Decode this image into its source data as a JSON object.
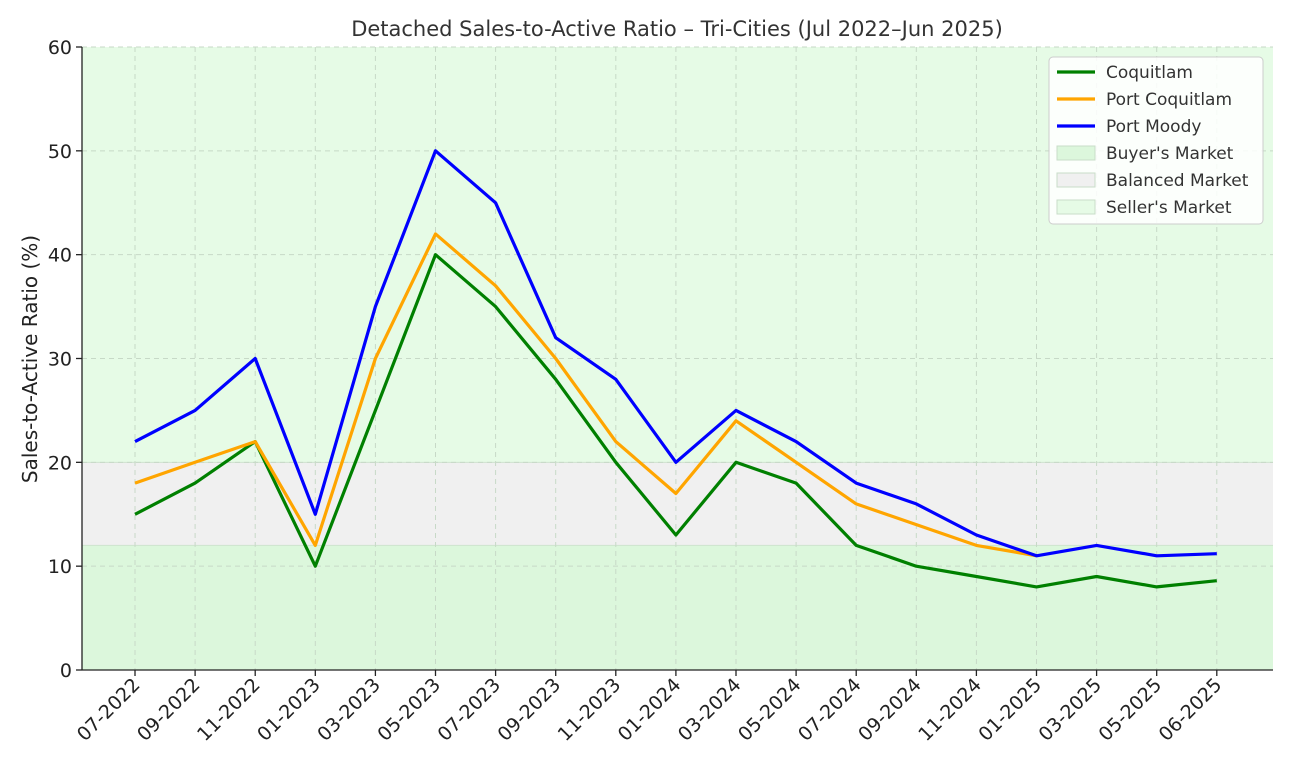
{
  "chart_data": {
    "type": "line",
    "title": "Detached Sales-to-Active Ratio – Tri-Cities (Jul 2022–Jun 2025)",
    "xlabel": "",
    "ylabel": "Sales-to-Active Ratio (%)",
    "ylim": [
      0,
      60
    ],
    "yticks": [
      0,
      10,
      20,
      30,
      40,
      50,
      60
    ],
    "grid": true,
    "legend_position": "top-right",
    "x": [
      "07-2022",
      "09-2022",
      "11-2022",
      "01-2023",
      "03-2023",
      "05-2023",
      "07-2023",
      "09-2023",
      "11-2023",
      "01-2024",
      "03-2024",
      "05-2024",
      "07-2024",
      "09-2024",
      "11-2024",
      "01-2025",
      "03-2025",
      "05-2025",
      "06-2025"
    ],
    "series": [
      {
        "name": "Coquitlam",
        "color": "#008000",
        "values": [
          15,
          18,
          22,
          10,
          25,
          40,
          35,
          28,
          20,
          13,
          20,
          18,
          12,
          10,
          9,
          8,
          9,
          8,
          8.6
        ]
      },
      {
        "name": "Port Coquitlam",
        "color": "#ffa500",
        "values": [
          18,
          20,
          22,
          12,
          30,
          42,
          37,
          30,
          22,
          17,
          24,
          20,
          16,
          14,
          12,
          11,
          null,
          null,
          null
        ]
      },
      {
        "name": "Port Moody",
        "color": "#0000ff",
        "values": [
          22,
          25,
          30,
          15,
          35,
          50,
          45,
          32,
          28,
          20,
          25,
          22,
          18,
          16,
          13,
          11,
          12,
          11,
          11.2
        ]
      }
    ],
    "bands": [
      {
        "name": "Buyer's Market",
        "from": 0,
        "to": 12,
        "color": "#dcf7dc"
      },
      {
        "name": "Balanced Market",
        "from": 12,
        "to": 20,
        "color": "#f0f0f0"
      },
      {
        "name": "Seller's Market",
        "from": 20,
        "to": 60,
        "color": "#e6fbe6"
      }
    ]
  }
}
